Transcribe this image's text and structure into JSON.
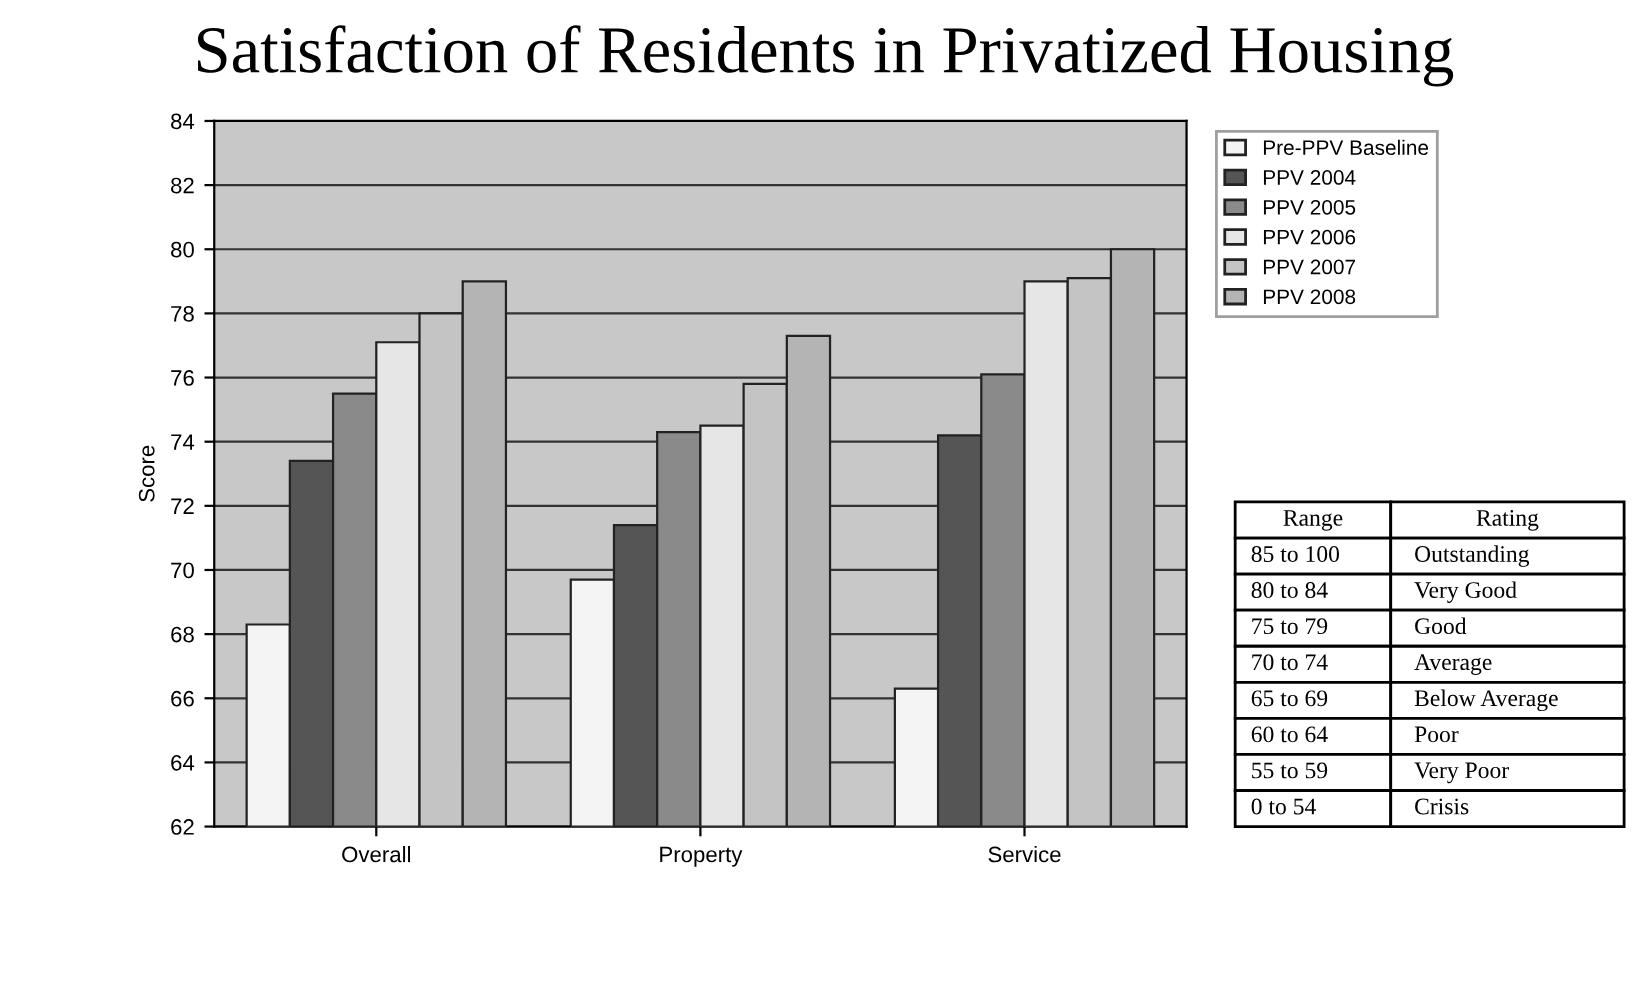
{
  "chart_data": {
    "type": "bar",
    "title": "Satisfaction of Residents in Privatized Housing",
    "ylabel": "Score",
    "categories": [
      "Overall",
      "Property",
      "Service"
    ],
    "series": [
      {
        "name": "Pre-PPV Baseline",
        "color": "#f4f4f4",
        "values": [
          68.3,
          69.7,
          66.3
        ]
      },
      {
        "name": "PPV 2004",
        "color": "#555555",
        "values": [
          73.4,
          71.4,
          74.2
        ]
      },
      {
        "name": "PPV 2005",
        "color": "#8a8a8a",
        "values": [
          75.5,
          74.3,
          76.1
        ]
      },
      {
        "name": "PPV 2006",
        "color": "#e6e6e6",
        "values": [
          77.1,
          74.5,
          79.0
        ]
      },
      {
        "name": "PPV 2007",
        "color": "#c4c4c4",
        "values": [
          78.0,
          75.8,
          79.1
        ]
      },
      {
        "name": "PPV 2008",
        "color": "#b4b4b4",
        "values": [
          79.0,
          77.3,
          80.0
        ]
      }
    ],
    "ylim": [
      62,
      84
    ],
    "yticks": [
      62,
      64,
      66,
      68,
      70,
      72,
      74,
      76,
      78,
      80,
      82,
      84
    ],
    "grid": "y",
    "legend": "top right",
    "annotations": [
      "Range",
      "Rating",
      "85 to 100",
      "Outstanding",
      "80 to 84",
      "Very Good",
      "75 to 79",
      "Good",
      "70 to 74",
      "Average",
      "65 to 69",
      "Below Average",
      "60 to 64",
      "Poor",
      "55 to 59",
      "Very Poor",
      "0 to 54",
      "Crisis"
    ]
  }
}
